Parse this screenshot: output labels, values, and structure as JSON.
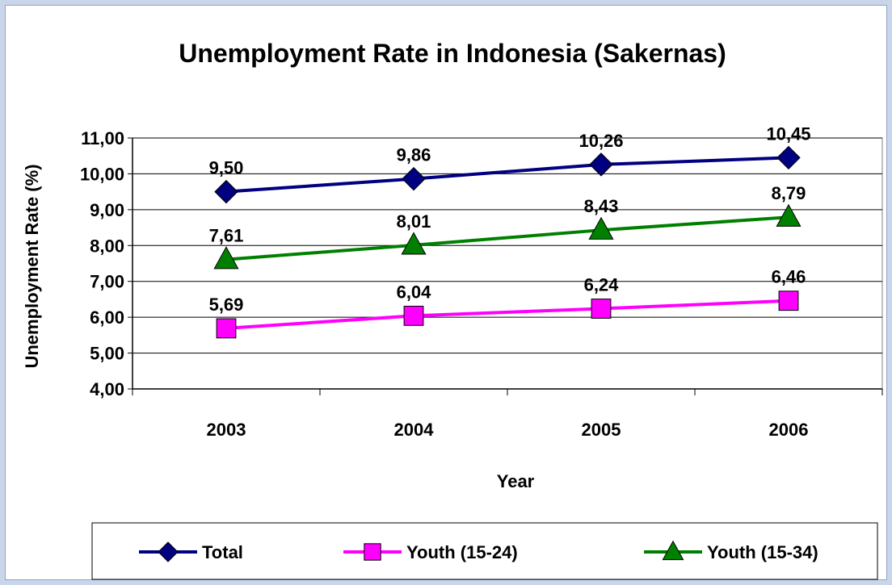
{
  "chart_data": {
    "type": "line",
    "title": "Unemployment Rate in Indonesia (Sakernas)",
    "xlabel": "Year",
    "ylabel": "Unemployment Rate (%)",
    "categories": [
      "2003",
      "2004",
      "2005",
      "2006"
    ],
    "ylim": [
      4,
      11
    ],
    "y_ticks": [
      "4,00",
      "5,00",
      "6,00",
      "7,00",
      "8,00",
      "9,00",
      "10,00",
      "11,00"
    ],
    "grid": true,
    "legend_position": "bottom",
    "series": [
      {
        "name": "Total",
        "values": [
          9.5,
          9.86,
          10.26,
          10.45
        ],
        "labels": [
          "9,50",
          "9,86",
          "10,26",
          "10,45"
        ],
        "color": "#000080",
        "marker": "diamond"
      },
      {
        "name": "Youth (15-24)",
        "values": [
          5.69,
          6.04,
          6.24,
          6.46
        ],
        "labels": [
          "5,69",
          "6,04",
          "6,24",
          "6,46"
        ],
        "color": "#ff00ff",
        "marker": "square"
      },
      {
        "name": "Youth (15-34)",
        "values": [
          7.61,
          8.01,
          8.43,
          8.79
        ],
        "labels": [
          "7,61",
          "8,01",
          "8,43",
          "8,79"
        ],
        "color": "#008000",
        "marker": "triangle"
      }
    ]
  }
}
